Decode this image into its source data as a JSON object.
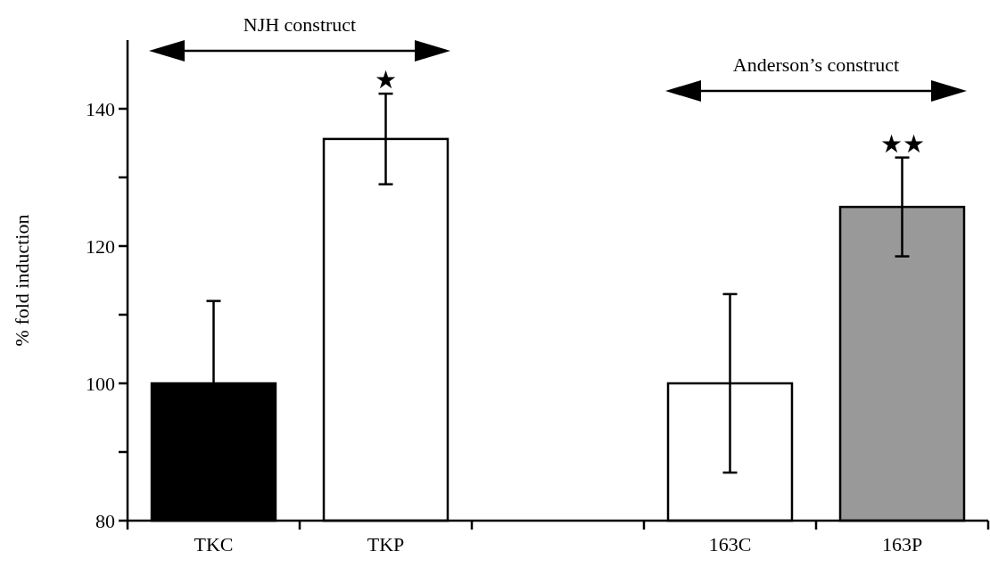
{
  "chart_data": {
    "type": "bar",
    "ylabel": "% fold induction",
    "categories": [
      "TKC",
      "TKP",
      null,
      "163C",
      "163P"
    ],
    "values": [
      100,
      135.6,
      null,
      100,
      125.7
    ],
    "errors": [
      12,
      6.6,
      null,
      13,
      7.2
    ],
    "colors": [
      "#000000",
      "#ffffff",
      null,
      "#ffffff",
      "#999999"
    ],
    "ylim": [
      80,
      150
    ],
    "yticks": [
      80,
      {
        "value": 90,
        "label": null
      },
      100,
      {
        "value": 110,
        "label": null
      },
      120,
      {
        "value": 130,
        "label": null
      },
      140
    ],
    "annotations": [
      "NJH construct",
      "Anderson’s construct",
      "★",
      "★★"
    ]
  }
}
